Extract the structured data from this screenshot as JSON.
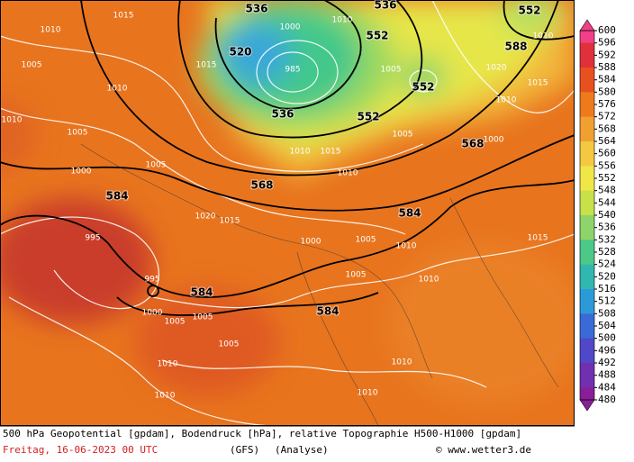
{
  "map": {
    "caption": "500 hPa Geopotential [gpdam], Bodendruck [hPa], relative Topographie H500-H1000 [gpdam]",
    "date": "Freitag, 16-06-2023  00 UTC",
    "model": "(GFS)",
    "run": "(Analyse)",
    "credit": "© www.wetter3.de",
    "colorbar_ticks": [
      600,
      596,
      592,
      588,
      584,
      580,
      576,
      572,
      568,
      564,
      560,
      556,
      552,
      548,
      544,
      540,
      536,
      532,
      528,
      524,
      520,
      516,
      512,
      508,
      504,
      500,
      496,
      492,
      488,
      484,
      480
    ],
    "height_labels": [
      536,
      536,
      552,
      520,
      552,
      588,
      552,
      536,
      552,
      568,
      568,
      584,
      584,
      584,
      584
    ],
    "pressure_labels": [
      1015,
      1010,
      1005,
      1010,
      1010,
      1005,
      1000,
      1005,
      995,
      995,
      1000,
      1005,
      1005,
      1005,
      1010,
      1010,
      1010,
      1010,
      1010,
      1005,
      1005,
      1010,
      1015,
      1010,
      1000,
      1020,
      1015,
      1010,
      1010,
      1005,
      1005,
      1010,
      1015,
      1010,
      1015,
      985,
      1000,
      1015,
      1020,
      1000
    ]
  }
}
